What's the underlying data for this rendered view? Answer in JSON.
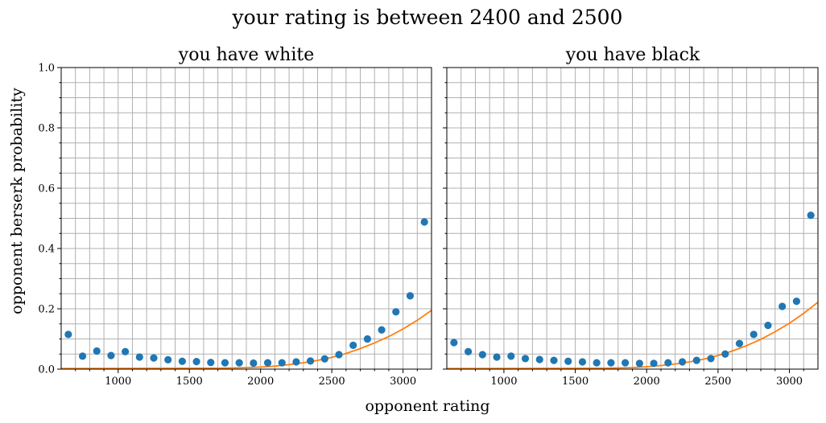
{
  "figure": {
    "title": "your rating is between 2400 and 2500",
    "xlabel": "opponent rating",
    "ylabel": "opponent berserk probability"
  },
  "colors": {
    "points": "#1f77b4",
    "fit": "#ff7f0e",
    "grid": "#b0b0b0",
    "axes": "#000000"
  },
  "chart_data": [
    {
      "type": "scatter",
      "title": "you have white",
      "xlim": [
        600,
        3200
      ],
      "ylim": [
        0,
        1.0
      ],
      "x_ticks": [
        1000,
        1500,
        2000,
        2500,
        3000
      ],
      "y_ticks": [
        0.0,
        0.2,
        0.4,
        0.6,
        0.8,
        1.0
      ],
      "y_tick_labels": [
        "0.0",
        "0.2",
        "0.4",
        "0.6",
        "0.8",
        "1.0"
      ],
      "grid": true,
      "series": [
        {
          "type": "scatter",
          "x": [
            650,
            750,
            850,
            950,
            1050,
            1150,
            1250,
            1350,
            1450,
            1550,
            1650,
            1750,
            1850,
            1950,
            2050,
            2150,
            2250,
            2350,
            2450,
            2550,
            2650,
            2750,
            2850,
            2950,
            3050,
            3150
          ],
          "y": [
            0.115,
            0.043,
            0.06,
            0.045,
            0.058,
            0.04,
            0.037,
            0.031,
            0.026,
            0.025,
            0.022,
            0.021,
            0.021,
            0.02,
            0.021,
            0.021,
            0.024,
            0.027,
            0.034,
            0.048,
            0.079,
            0.1,
            0.13,
            0.19,
            0.243,
            0.488
          ]
        },
        {
          "type": "line",
          "x": [
            600,
            1700,
            1900,
            2000,
            2100,
            2200,
            2300,
            2400,
            2500,
            2600,
            2700,
            2800,
            2900,
            3000,
            3100,
            3200
          ],
          "y": [
            0.002,
            0.003,
            0.005,
            0.007,
            0.01,
            0.015,
            0.021,
            0.029,
            0.039,
            0.052,
            0.068,
            0.087,
            0.108,
            0.133,
            0.162,
            0.195
          ]
        }
      ]
    },
    {
      "type": "scatter",
      "title": "you have black",
      "xlim": [
        600,
        3200
      ],
      "ylim": [
        0,
        1.0
      ],
      "x_ticks": [
        1000,
        1500,
        2000,
        2500,
        3000
      ],
      "y_ticks": [
        0.0,
        0.2,
        0.4,
        0.6,
        0.8,
        1.0
      ],
      "grid": true,
      "series": [
        {
          "type": "scatter",
          "x": [
            650,
            750,
            850,
            950,
            1050,
            1150,
            1250,
            1350,
            1450,
            1550,
            1650,
            1750,
            1850,
            1950,
            2050,
            2150,
            2250,
            2350,
            2450,
            2550,
            2650,
            2750,
            2850,
            2950,
            3050,
            3150
          ],
          "y": [
            0.088,
            0.058,
            0.048,
            0.04,
            0.043,
            0.035,
            0.032,
            0.029,
            0.026,
            0.024,
            0.021,
            0.021,
            0.021,
            0.019,
            0.019,
            0.021,
            0.024,
            0.029,
            0.035,
            0.05,
            0.085,
            0.115,
            0.145,
            0.208,
            0.225,
            0.51
          ]
        },
        {
          "type": "line",
          "x": [
            600,
            1700,
            1900,
            2000,
            2100,
            2200,
            2300,
            2400,
            2500,
            2600,
            2700,
            2800,
            2900,
            3000,
            3100,
            3200
          ],
          "y": [
            0.002,
            0.003,
            0.005,
            0.008,
            0.012,
            0.017,
            0.024,
            0.033,
            0.045,
            0.06,
            0.078,
            0.099,
            0.124,
            0.152,
            0.185,
            0.222
          ]
        }
      ]
    }
  ]
}
